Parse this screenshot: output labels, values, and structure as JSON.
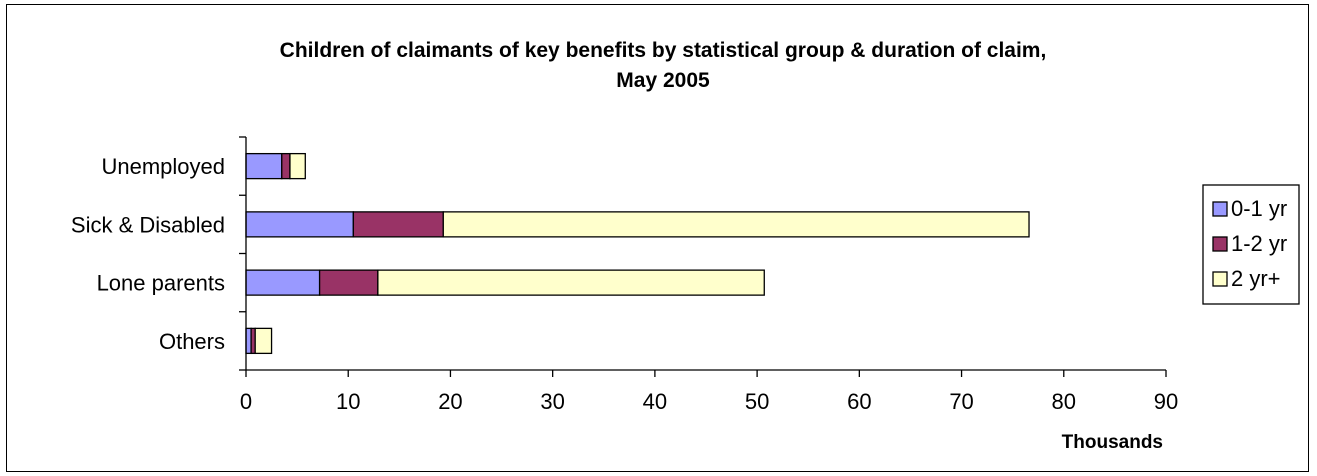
{
  "chart_data": {
    "type": "bar",
    "orientation": "horizontal",
    "stacked": true,
    "title_lines": [
      "Children of claimants of key benefits by statistical group & duration of claim,",
      "May 2005"
    ],
    "xlabel": "",
    "ylabel": "",
    "units_label": "Thousands",
    "categories": [
      "Unemployed",
      "Sick & Disabled",
      "Lone parents",
      "Others"
    ],
    "series": [
      {
        "name": "0-1 yr",
        "color": "#9999ff",
        "values": [
          3.5,
          10.5,
          7.2,
          0.5
        ]
      },
      {
        "name": "1-2 yr",
        "color": "#993366",
        "values": [
          0.8,
          8.8,
          5.7,
          0.4
        ]
      },
      {
        "name": "2 yr+",
        "color": "#ffffcc",
        "values": [
          1.5,
          57.3,
          37.8,
          1.6
        ]
      }
    ],
    "xlim": [
      0,
      90
    ],
    "xticks": [
      "0",
      "10",
      "20",
      "30",
      "40",
      "50",
      "60",
      "70",
      "80",
      "90"
    ],
    "grid": false,
    "legend": "right"
  }
}
